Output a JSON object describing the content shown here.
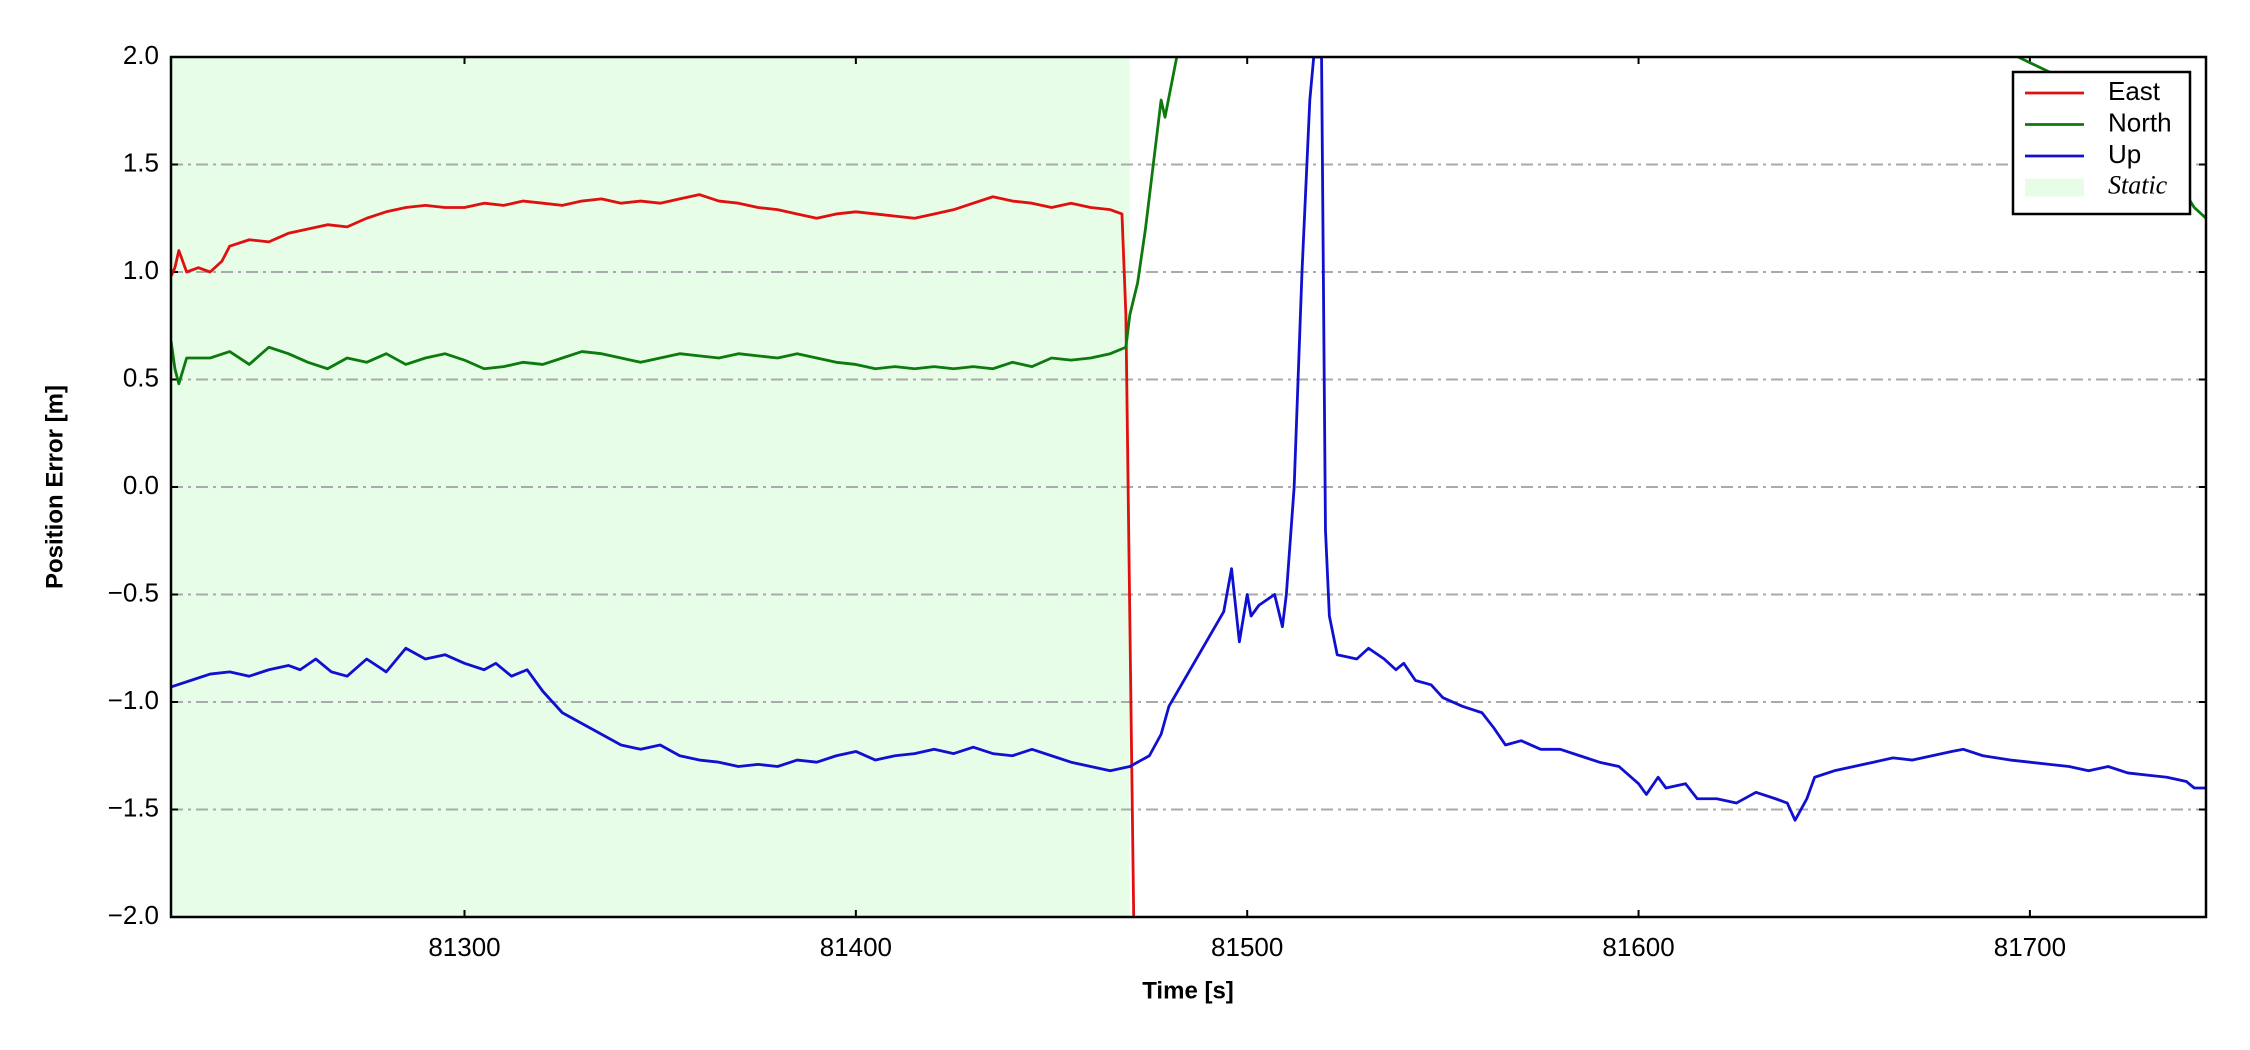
{
  "chart_data": {
    "type": "line",
    "x_label": "Time [s]",
    "y_label": "Position Error [m]",
    "xlim": [
      81225,
      81745
    ],
    "ylim": [
      -2.0,
      2.0
    ],
    "xticks": [
      81300,
      81400,
      81500,
      81600,
      81700
    ],
    "yticks": [
      {
        "value": -2.0,
        "label": "−2.0"
      },
      {
        "value": -1.5,
        "label": "−1.5"
      },
      {
        "value": -1.0,
        "label": "−1.0"
      },
      {
        "value": -0.5,
        "label": "−0.5"
      },
      {
        "value": 0.0,
        "label": "0.0"
      },
      {
        "value": 0.5,
        "label": "0.5"
      },
      {
        "value": 1.0,
        "label": "1.0"
      },
      {
        "value": 1.5,
        "label": "1.5"
      },
      {
        "value": 2.0,
        "label": "2.0"
      }
    ],
    "grid": true,
    "legend": "upper right",
    "shaded_regions": [
      {
        "label": "Static",
        "x": [
          81225,
          81470
        ],
        "color": "#e8fde8"
      }
    ],
    "series": [
      {
        "name": "East",
        "color": "#e01010",
        "x": [
          81225,
          81226,
          81227,
          81229,
          81232,
          81235,
          81238,
          81240,
          81245,
          81250,
          81255,
          81260,
          81265,
          81270,
          81275,
          81280,
          81285,
          81290,
          81295,
          81300,
          81305,
          81310,
          81315,
          81320,
          81325,
          81330,
          81335,
          81340,
          81345,
          81350,
          81355,
          81360,
          81365,
          81370,
          81375,
          81380,
          81385,
          81390,
          81395,
          81400,
          81405,
          81410,
          81415,
          81420,
          81425,
          81430,
          81435,
          81440,
          81445,
          81450,
          81455,
          81460,
          81465,
          81468,
          81469,
          81471
        ],
        "values": [
          0.98,
          1.02,
          1.1,
          1.0,
          1.02,
          1.0,
          1.05,
          1.12,
          1.15,
          1.14,
          1.18,
          1.2,
          1.22,
          1.21,
          1.25,
          1.28,
          1.3,
          1.31,
          1.3,
          1.3,
          1.32,
          1.31,
          1.33,
          1.32,
          1.31,
          1.33,
          1.34,
          1.32,
          1.33,
          1.32,
          1.34,
          1.36,
          1.33,
          1.32,
          1.3,
          1.29,
          1.27,
          1.25,
          1.27,
          1.28,
          1.27,
          1.26,
          1.25,
          1.27,
          1.29,
          1.32,
          1.35,
          1.33,
          1.32,
          1.3,
          1.32,
          1.3,
          1.29,
          1.27,
          0.8,
          -2.0
        ]
      },
      {
        "name": "North",
        "color": "#0c7a0c",
        "x": [
          81225,
          81226,
          81227,
          81229,
          81235,
          81240,
          81245,
          81250,
          81255,
          81260,
          81265,
          81270,
          81275,
          81280,
          81285,
          81290,
          81295,
          81300,
          81305,
          81310,
          81315,
          81320,
          81325,
          81330,
          81335,
          81340,
          81345,
          81350,
          81355,
          81360,
          81365,
          81370,
          81375,
          81380,
          81385,
          81390,
          81395,
          81400,
          81405,
          81410,
          81415,
          81420,
          81425,
          81430,
          81435,
          81440,
          81445,
          81450,
          81455,
          81460,
          81465,
          81469,
          81470,
          81472,
          81474,
          81476,
          81478,
          81479,
          81482,
          null,
          81697,
          81705,
          81712,
          81720,
          81728,
          81735,
          81742,
          81745
        ],
        "values": [
          0.68,
          0.55,
          0.48,
          0.6,
          0.6,
          0.63,
          0.57,
          0.65,
          0.62,
          0.58,
          0.55,
          0.6,
          0.58,
          0.62,
          0.57,
          0.6,
          0.62,
          0.59,
          0.55,
          0.56,
          0.58,
          0.57,
          0.6,
          0.63,
          0.62,
          0.6,
          0.58,
          0.6,
          0.62,
          0.61,
          0.6,
          0.62,
          0.61,
          0.6,
          0.62,
          0.6,
          0.58,
          0.57,
          0.55,
          0.56,
          0.55,
          0.56,
          0.55,
          0.56,
          0.55,
          0.58,
          0.56,
          0.6,
          0.59,
          0.6,
          0.62,
          0.65,
          0.8,
          0.95,
          1.2,
          1.5,
          1.8,
          1.72,
          2.0,
          null,
          2.0,
          1.93,
          1.9,
          1.8,
          1.7,
          1.5,
          1.3,
          1.25
        ]
      },
      {
        "name": "Up",
        "color": "#1010d0",
        "x": [
          81225,
          81230,
          81235,
          81240,
          81245,
          81250,
          81255,
          81258,
          81262,
          81266,
          81270,
          81275,
          81280,
          81285,
          81290,
          81295,
          81300,
          81305,
          81308,
          81312,
          81316,
          81320,
          81325,
          81330,
          81335,
          81340,
          81345,
          81350,
          81355,
          81360,
          81365,
          81370,
          81375,
          81380,
          81385,
          81390,
          81395,
          81400,
          81405,
          81410,
          81415,
          81420,
          81425,
          81430,
          81435,
          81440,
          81445,
          81450,
          81455,
          81460,
          81465,
          81470,
          81475,
          81478,
          81480,
          81494,
          81496,
          81498,
          81500,
          81501,
          81503,
          81507,
          81509,
          81510,
          81512,
          81514,
          81516,
          81517,
          81519,
          81520,
          81521,
          81523,
          81528,
          81531,
          81535,
          81538,
          81540,
          81543,
          81547,
          81550,
          81555,
          81560,
          81563,
          81566,
          81570,
          81575,
          81580,
          81585,
          81590,
          81595,
          81600,
          81602,
          81605,
          81607,
          81612,
          81615,
          81620,
          81625,
          81630,
          81635,
          81638,
          81640,
          81643,
          81645,
          81650,
          81655,
          81660,
          81665,
          81670,
          81675,
          81680,
          81683,
          81688,
          81695,
          81700,
          81705,
          81710,
          81715,
          81720,
          81725,
          81730,
          81735,
          81740,
          81742,
          81745
        ],
        "values": [
          -0.93,
          -0.9,
          -0.87,
          -0.86,
          -0.88,
          -0.85,
          -0.83,
          -0.85,
          -0.8,
          -0.86,
          -0.88,
          -0.8,
          -0.86,
          -0.75,
          -0.8,
          -0.78,
          -0.82,
          -0.85,
          -0.82,
          -0.88,
          -0.85,
          -0.95,
          -1.05,
          -1.1,
          -1.15,
          -1.2,
          -1.22,
          -1.2,
          -1.25,
          -1.27,
          -1.28,
          -1.3,
          -1.29,
          -1.3,
          -1.27,
          -1.28,
          -1.25,
          -1.23,
          -1.27,
          -1.25,
          -1.24,
          -1.22,
          -1.24,
          -1.21,
          -1.24,
          -1.25,
          -1.22,
          -1.25,
          -1.28,
          -1.3,
          -1.32,
          -1.3,
          -1.25,
          -1.15,
          -1.02,
          -0.58,
          -0.38,
          -0.72,
          -0.5,
          -0.6,
          -0.55,
          -0.5,
          -0.65,
          -0.5,
          0.0,
          1.0,
          1.8,
          2.0,
          2.0,
          -0.2,
          -0.6,
          -0.78,
          -0.8,
          -0.75,
          -0.8,
          -0.85,
          -0.82,
          -0.9,
          -0.92,
          -0.98,
          -1.02,
          -1.05,
          -1.12,
          -1.2,
          -1.18,
          -1.22,
          -1.22,
          -1.25,
          -1.28,
          -1.3,
          -1.38,
          -1.43,
          -1.35,
          -1.4,
          -1.38,
          -1.45,
          -1.45,
          -1.47,
          -1.42,
          -1.45,
          -1.47,
          -1.55,
          -1.45,
          -1.35,
          -1.32,
          -1.3,
          -1.28,
          -1.26,
          -1.27,
          -1.25,
          -1.23,
          -1.22,
          -1.25,
          -1.27,
          -1.28,
          -1.29,
          -1.3,
          -1.32,
          -1.3,
          -1.33,
          -1.34,
          -1.35,
          -1.37,
          -1.4,
          -1.4
        ]
      }
    ]
  }
}
